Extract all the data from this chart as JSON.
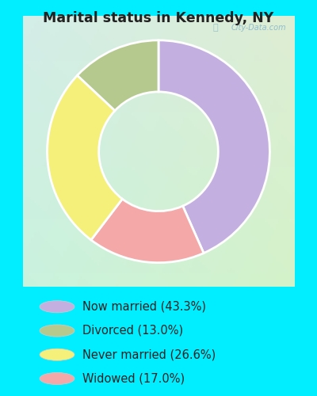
{
  "title": "Marital status in Kennedy, NY",
  "labels": [
    "Now married (43.3%)",
    "Divorced (13.0%)",
    "Never married (26.6%)",
    "Widowed (17.0%)"
  ],
  "legend_colors": [
    "#c4b0e0",
    "#b5c98e",
    "#f5f07a",
    "#f4a8a8"
  ],
  "plot_sizes": [
    43.3,
    17.0,
    26.6,
    13.0
  ],
  "plot_colors": [
    "#c4b0e0",
    "#f4a8a8",
    "#f5f07a",
    "#b5c98e"
  ],
  "watermark": "City-Data.com",
  "figsize": [
    4.0,
    5.0
  ],
  "dpi": 100,
  "title_color": "#222222",
  "outer_bg": "#00eeff",
  "chart_panel_bg": "#e8f5ee",
  "legend_text_color": "#222222"
}
